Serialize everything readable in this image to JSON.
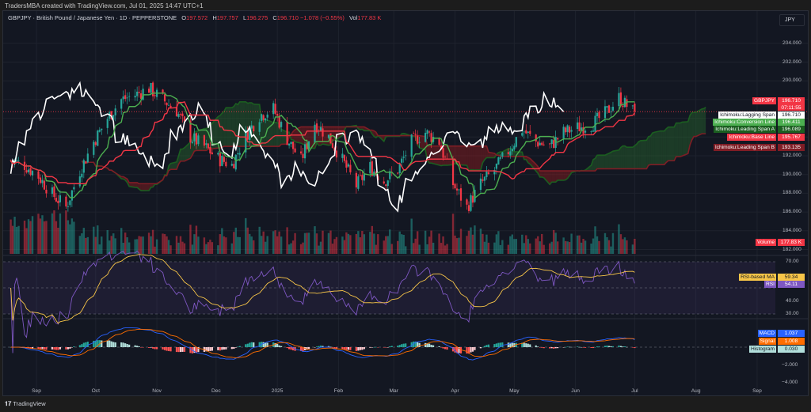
{
  "credit": "TradersMBA created with TradingView.com, Jul 01, 2025 14:47 UTC+1",
  "legend": {
    "symbol": "GBPJPY · British Pound / Japanese Yen · 1D · PEPPERSTONE",
    "o_label": "O",
    "o": "197.572",
    "h_label": "H",
    "h": "197.757",
    "l_label": "L",
    "l": "196.275",
    "c_label": "C",
    "c": "196.710",
    "change": "−1.078 (−0.55%)",
    "vol_label": "Vol",
    "vol": "177.83 K"
  },
  "currency_button": "JPY",
  "colors": {
    "bg": "#131722",
    "up": "#26a69a",
    "down": "#f23645",
    "conversion": "#4caf50",
    "base": "#f23645",
    "lagging": "#ffffff",
    "span_a": "#1b5e20",
    "span_b": "#7f1d25",
    "rsi": "#7e57c2",
    "rsi_ma": "#f7c548",
    "macd": "#2962ff",
    "signal": "#ff6d00"
  },
  "price_labels": [
    {
      "name": "GBPJPY",
      "value": "196.710",
      "sub": "07:11:55",
      "bg": "#f23645",
      "fg": "#ffffff"
    },
    {
      "name": "Ichimoku:Lagging Span",
      "value": "196.710",
      "bg": "#ffffff",
      "fg": "#131722"
    },
    {
      "name": "Ichimoku:Conversion Line",
      "value": "196.411",
      "bg": "#4caf50",
      "fg": "#ffffff"
    },
    {
      "name": "Ichimoku:Leading Span A",
      "value": "196.089",
      "bg": "#1b5e20",
      "fg": "#ffffff"
    },
    {
      "name": "Ichimoku:Base Line",
      "value": "195.767",
      "bg": "#f23645",
      "fg": "#ffffff"
    },
    {
      "name": "Ichimoku:Leading Span B",
      "value": "193.135",
      "bg": "#7f1d25",
      "fg": "#ffffff"
    },
    {
      "name": "Volume",
      "value": "177.83 K",
      "bg": "#f23645",
      "fg": "#ffffff"
    }
  ],
  "rsi_labels": [
    {
      "name": "RSI-based MA",
      "value": "59.34",
      "bg": "#f7c548",
      "fg": "#131722"
    },
    {
      "name": "RSI",
      "value": "54.11",
      "bg": "#7e57c2",
      "fg": "#ffffff"
    }
  ],
  "macd_labels": [
    {
      "name": "MACD",
      "value": "1.037",
      "bg": "#2962ff",
      "fg": "#ffffff"
    },
    {
      "name": "Signal",
      "value": "1.008",
      "bg": "#ff6d00",
      "fg": "#ffffff"
    },
    {
      "name": "Histogram",
      "value": "0.030",
      "bg": "#b2dfdb",
      "fg": "#131722"
    }
  ],
  "price_ticks": [
    "204.000",
    "202.000",
    "200.000",
    "192.000",
    "190.000",
    "188.000",
    "186.000",
    "184.000",
    "182.000"
  ],
  "rsi_ticks": [
    "70.00",
    "40.00",
    "30.00"
  ],
  "macd_ticks": [
    "−2.000",
    "−4.000"
  ],
  "time_ticks": [
    {
      "label": "Sep",
      "date": "2024-09-01"
    },
    {
      "label": "Oct",
      "date": "2024-10-01"
    },
    {
      "label": "Nov",
      "date": "2024-11-01"
    },
    {
      "label": "Dec",
      "date": "2024-12-01"
    },
    {
      "label": "2025",
      "date": "2025-01-01"
    },
    {
      "label": "Feb",
      "date": "2025-02-01"
    },
    {
      "label": "Mar",
      "date": "2025-03-01"
    },
    {
      "label": "Apr",
      "date": "2025-04-01"
    },
    {
      "label": "May",
      "date": "2025-05-01"
    },
    {
      "label": "Jun",
      "date": "2025-06-01"
    },
    {
      "label": "Jul",
      "date": "2025-07-01"
    },
    {
      "label": "Aug",
      "date": "2025-08-01"
    },
    {
      "label": "Sep",
      "date": "2025-09-01"
    }
  ],
  "footer": "TradingView",
  "chart_data": {
    "type": "candlestick",
    "title": "GBPJPY · British Pound / Japanese Yen · 1D · PEPPERSTONE",
    "indicators": [
      "Ichimoku Cloud",
      "Volume",
      "RSI",
      "MACD"
    ],
    "ylim": [
      181.5,
      205.5
    ],
    "grid": true,
    "last_bar": {
      "date": "2025-07-01",
      "open": 197.572,
      "high": 197.757,
      "low": 196.275,
      "close": 196.71
    },
    "weekly_closes": [
      {
        "date": "2024-08-19",
        "close": 191.5
      },
      {
        "date": "2024-08-26",
        "close": 191.0
      },
      {
        "date": "2024-09-02",
        "close": 189.8
      },
      {
        "date": "2024-09-09",
        "close": 187.9
      },
      {
        "date": "2024-09-16",
        "close": 186.5
      },
      {
        "date": "2024-09-23",
        "close": 190.4
      },
      {
        "date": "2024-09-30",
        "close": 193.5
      },
      {
        "date": "2024-10-07",
        "close": 196.0
      },
      {
        "date": "2024-10-14",
        "close": 198.0
      },
      {
        "date": "2024-10-21",
        "close": 198.5
      },
      {
        "date": "2024-10-28",
        "close": 199.2
      },
      {
        "date": "2024-11-04",
        "close": 198.0
      },
      {
        "date": "2024-11-11",
        "close": 196.8
      },
      {
        "date": "2024-11-18",
        "close": 194.0
      },
      {
        "date": "2024-11-25",
        "close": 193.0
      },
      {
        "date": "2024-12-02",
        "close": 191.7
      },
      {
        "date": "2024-12-09",
        "close": 191.0
      },
      {
        "date": "2024-12-16",
        "close": 194.2
      },
      {
        "date": "2024-12-23",
        "close": 196.3
      },
      {
        "date": "2024-12-30",
        "close": 197.0
      },
      {
        "date": "2025-01-06",
        "close": 193.8
      },
      {
        "date": "2025-01-13",
        "close": 191.5
      },
      {
        "date": "2025-01-20",
        "close": 195.5
      },
      {
        "date": "2025-01-27",
        "close": 194.0
      },
      {
        "date": "2025-02-03",
        "close": 191.5
      },
      {
        "date": "2025-02-10",
        "close": 188.8
      },
      {
        "date": "2025-02-17",
        "close": 190.8
      },
      {
        "date": "2025-02-24",
        "close": 189.3
      },
      {
        "date": "2025-03-03",
        "close": 190.5
      },
      {
        "date": "2025-03-10",
        "close": 193.5
      },
      {
        "date": "2025-03-17",
        "close": 194.5
      },
      {
        "date": "2025-03-24",
        "close": 193.5
      },
      {
        "date": "2025-03-31",
        "close": 189.0
      },
      {
        "date": "2025-04-07",
        "close": 186.5
      },
      {
        "date": "2025-04-14",
        "close": 189.0
      },
      {
        "date": "2025-04-21",
        "close": 190.5
      },
      {
        "date": "2025-04-28",
        "close": 192.5
      },
      {
        "date": "2025-05-05",
        "close": 194.8
      },
      {
        "date": "2025-05-12",
        "close": 193.5
      },
      {
        "date": "2025-05-19",
        "close": 193.0
      },
      {
        "date": "2025-05-26",
        "close": 194.5
      },
      {
        "date": "2025-06-02",
        "close": 195.0
      },
      {
        "date": "2025-06-09",
        "close": 195.3
      },
      {
        "date": "2025-06-16",
        "close": 196.5
      },
      {
        "date": "2025-06-23",
        "close": 198.2
      },
      {
        "date": "2025-06-30",
        "close": 196.71
      }
    ]
  }
}
